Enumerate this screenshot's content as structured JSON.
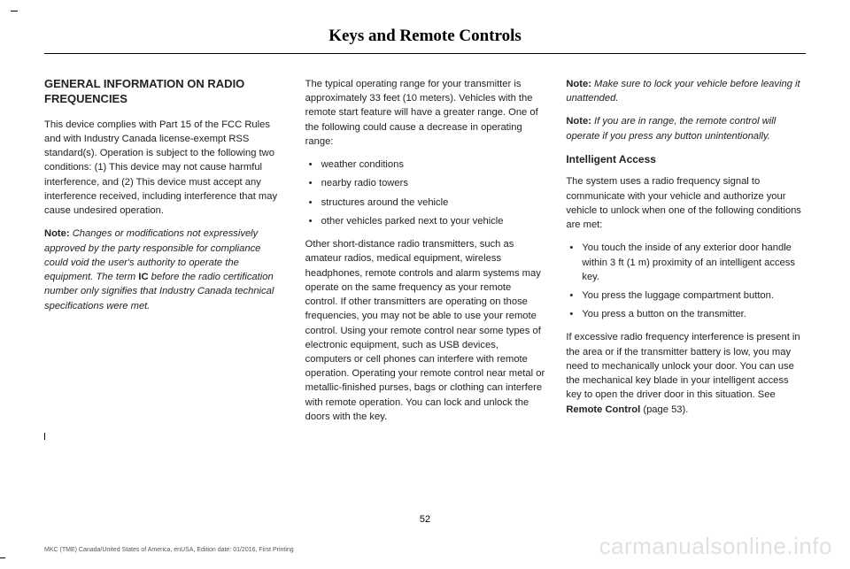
{
  "header": {
    "title": "Keys and Remote Controls"
  },
  "col1": {
    "heading": "GENERAL INFORMATION ON RADIO FREQUENCIES",
    "para1": "This device complies with Part 15 of the FCC Rules and with Industry Canada license-exempt RSS standard(s). Operation is subject to the following two conditions: (1) This device may not cause harmful interference, and (2) This device must accept any interference received, including interference that may cause undesired operation.",
    "note1_label": "Note:",
    "note1_text_a": " Changes or modifications not expressively approved by the party responsible for compliance could void the user's authority to operate the equipment. The term ",
    "note1_bold": "IC",
    "note1_text_b": " before the radio certification number only signifies that Industry Canada technical specifications were met."
  },
  "col2": {
    "para1": "The typical operating range for your transmitter is approximately 33 feet (10 meters). Vehicles with the remote start feature will have a greater range. One of the following could cause a decrease in operating range:",
    "bullets": [
      "weather conditions",
      "nearby radio towers",
      "structures around the vehicle",
      "other vehicles parked next to your vehicle"
    ],
    "para2": "Other short-distance radio transmitters, such as amateur radios, medical equipment, wireless headphones, remote controls and alarm systems may operate on the same frequency as your remote control. If other transmitters are operating on those frequencies, you may not be able to use your remote control. Using your remote control near some types of electronic equipment, such as USB devices, computers or cell phones can interfere with remote operation. Operating your remote control near metal or metallic-finished purses, bags or clothing can interfere with remote operation. You can lock and unlock the doors with the key."
  },
  "col3": {
    "note1_label": "Note:",
    "note1_text": " Make sure to lock your vehicle before leaving it unattended.",
    "note2_label": "Note:",
    "note2_text": " If you are in range, the remote control will operate if you press any button unintentionally.",
    "subheading": "Intelligent Access",
    "para1": "The system uses a radio frequency signal to communicate with your vehicle and authorize your vehicle to unlock when one of the following conditions are met:",
    "bullets": [
      "You touch the inside of any exterior door handle within 3 ft (1 m) proximity of an intelligent access key.",
      "You press the luggage compartment button.",
      "You press a button on the transmitter."
    ],
    "para2_a": "If excessive radio frequency interference is present in the area or if the transmitter battery is low, you may need to mechanically unlock your door. You can use the mechanical key blade in your intelligent access key to open the driver door in this situation.  See ",
    "para2_bold": "Remote Control",
    "para2_b": " (page 53)."
  },
  "footer": {
    "page_number": "52",
    "edition": "MKC (TME) Canada/United States of America, enUSA, Edition date: 01/2016, First Printing",
    "watermark": "carmanualsonline.info"
  }
}
